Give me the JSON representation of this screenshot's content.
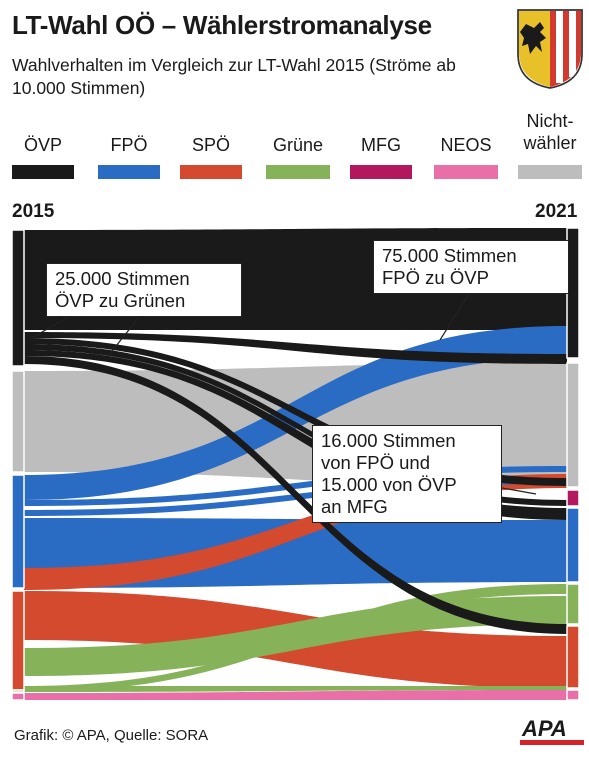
{
  "header": {
    "title": "LT-Wahl OÖ – Wählerstromanalyse",
    "subtitle": "Wahlverhalten im Vergleich zur LT-Wahl 2015 (Ströme ab 10.000 Stimmen)"
  },
  "legend": [
    {
      "label": "ÖVP",
      "color": "#1a1a1a"
    },
    {
      "label": "FPÖ",
      "color": "#2a6bc4"
    },
    {
      "label": "SPÖ",
      "color": "#d34a2e"
    },
    {
      "label": "Grüne",
      "color": "#86b35a"
    },
    {
      "label": "MFG",
      "color": "#b3185e"
    },
    {
      "label": "NEOS",
      "color": "#e96fa8"
    },
    {
      "label": "Nicht-\nwähler",
      "color": "#bdbdbd"
    }
  ],
  "years": {
    "left": "2015",
    "right": "2021"
  },
  "callouts": {
    "c1": "25.000 Stimmen\nÖVP zu Grünen",
    "c2": "75.000 Stimmen\nFPÖ zu ÖVP",
    "c3": "16.000 Stimmen\nvon FPÖ und\n15.000 von ÖVP\nan MFG"
  },
  "footer": {
    "source": "Grafik: © APA, Quelle: SORA",
    "logo": "APA"
  },
  "chart_data": {
    "type": "sankey",
    "title": "LT-Wahl OÖ – Wählerstromanalyse",
    "subtitle": "Wahlverhalten im Vergleich zur LT-Wahl 2015 (Ströme ab 10.000 Stimmen)",
    "left_year": "2015",
    "right_year": "2021",
    "nodes_left": [
      {
        "party": "ÖVP",
        "color": "#1a1a1a"
      },
      {
        "party": "Nichtwähler",
        "color": "#bdbdbd"
      },
      {
        "party": "FPÖ",
        "color": "#2a6bc4"
      },
      {
        "party": "SPÖ",
        "color": "#d34a2e"
      },
      {
        "party": "Grüne",
        "color": "#86b35a"
      },
      {
        "party": "NEOS",
        "color": "#e96fa8"
      }
    ],
    "nodes_right": [
      {
        "party": "ÖVP",
        "color": "#1a1a1a"
      },
      {
        "party": "Nichtwähler",
        "color": "#bdbdbd"
      },
      {
        "party": "MFG",
        "color": "#b3185e"
      },
      {
        "party": "FPÖ",
        "color": "#2a6bc4"
      },
      {
        "party": "Grüne",
        "color": "#86b35a"
      },
      {
        "party": "SPÖ",
        "color": "#d34a2e"
      },
      {
        "party": "NEOS",
        "color": "#e96fa8"
      }
    ],
    "flows_annotated": [
      {
        "from": "ÖVP",
        "to": "Grüne",
        "value": 25000
      },
      {
        "from": "FPÖ",
        "to": "ÖVP",
        "value": 75000
      },
      {
        "from": "FPÖ",
        "to": "MFG",
        "value": 16000
      },
      {
        "from": "ÖVP",
        "to": "MFG",
        "value": 15000
      }
    ]
  }
}
